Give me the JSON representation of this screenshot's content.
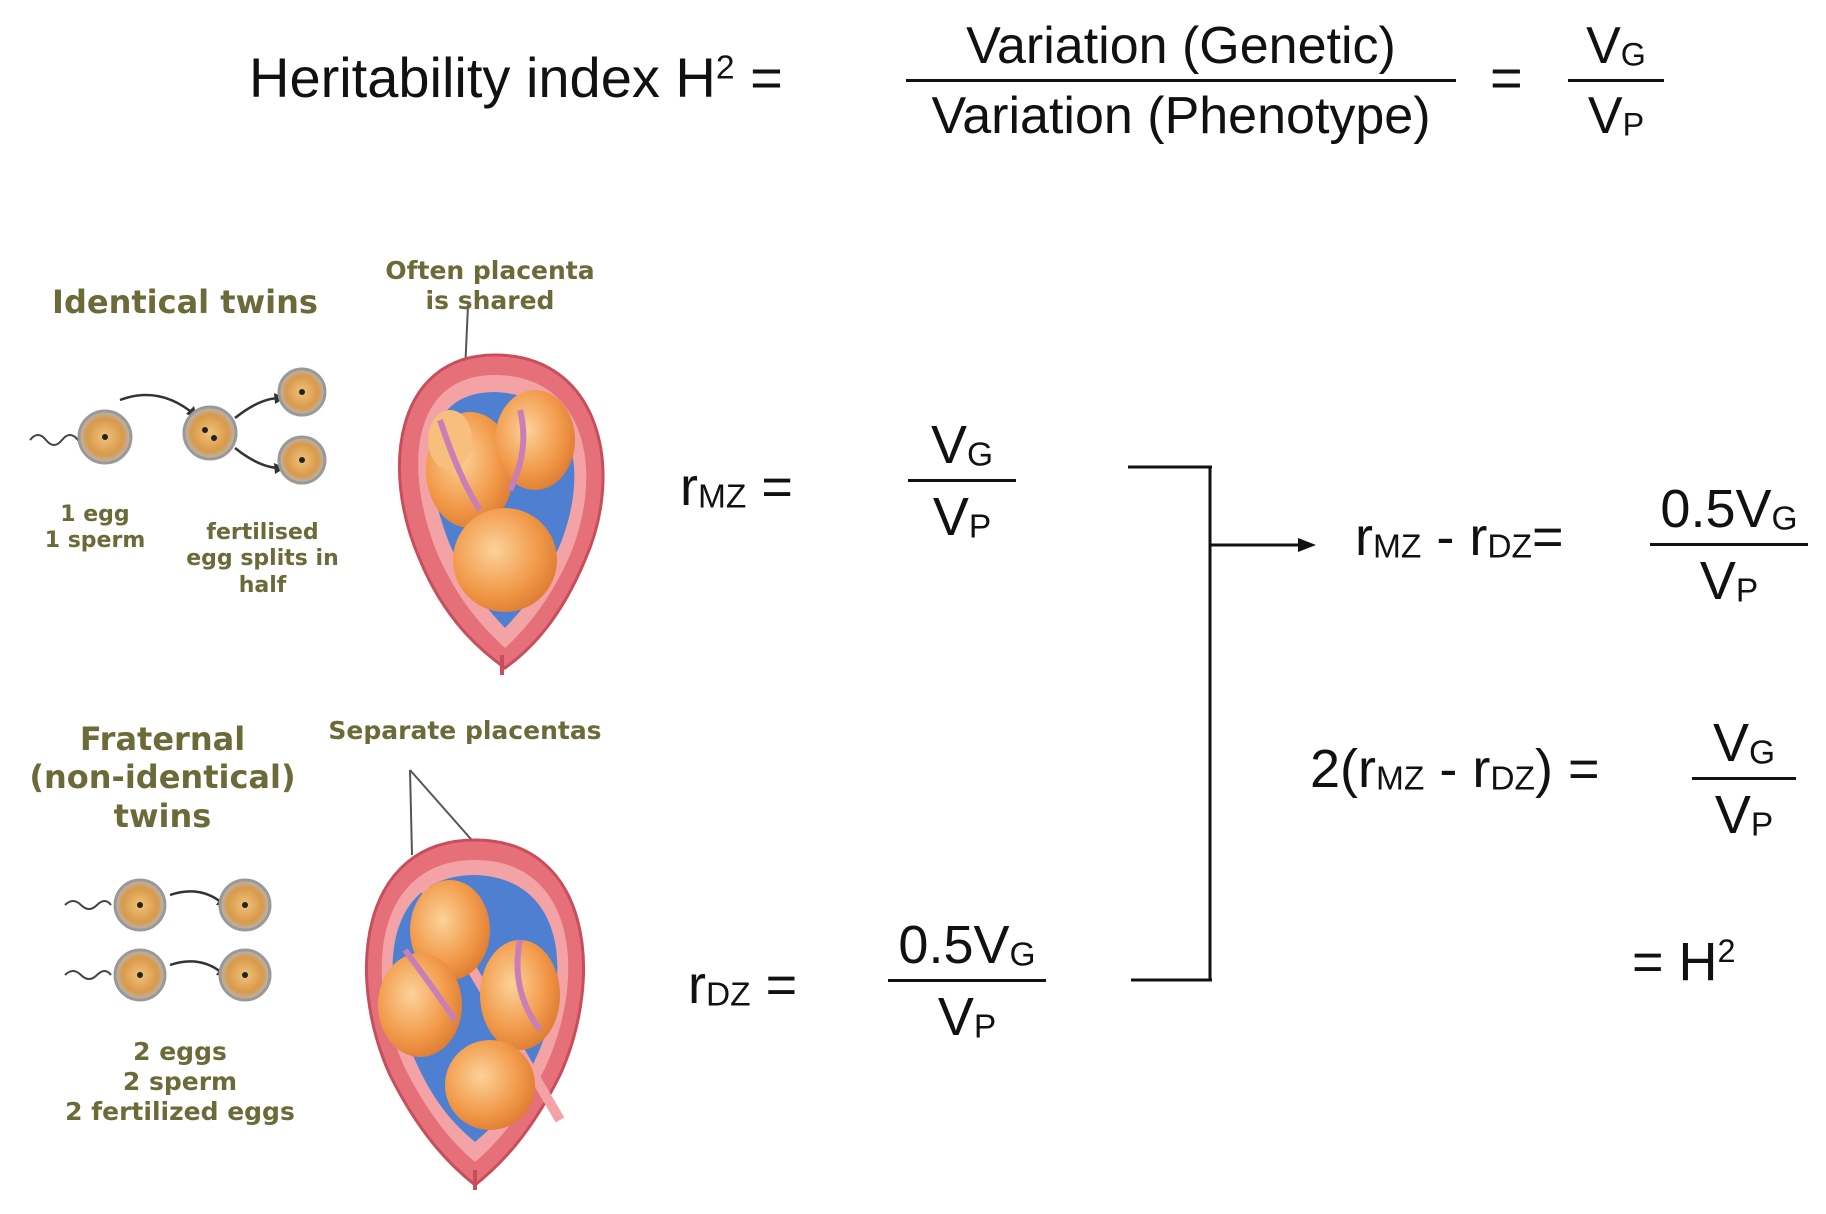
{
  "heading": {
    "label": "Heritability index",
    "h_symbol": "H",
    "h_exp": "2",
    "equals": "=",
    "numerator": "Variation (Genetic)",
    "denominator": "Variation (Phenotype)",
    "equals2": "=",
    "vg": "V",
    "vg_sub": "G",
    "vp": "V",
    "vp_sub": "P"
  },
  "illustration": {
    "identical": {
      "title": "Identical twins",
      "placenta_note_line1": "Often placenta",
      "placenta_note_line2": "is shared",
      "egg_line1": "1 egg",
      "egg_line2": "1 sperm",
      "split_line1": "fertilised",
      "split_line2": "egg splits in",
      "split_line3": "half"
    },
    "fraternal": {
      "title_line1": "Fraternal",
      "title_line2": "(non-identical)",
      "title_line3": "twins",
      "placenta_note": "Separate placentas",
      "egg_line1": "2 eggs",
      "egg_line2": "2 sperm",
      "egg_line3": "2 fertilized eggs"
    }
  },
  "equations": {
    "r": "r",
    "mz": "MZ",
    "dz": "DZ",
    "eq": "=",
    "vg": "V",
    "g": "G",
    "vp": "V",
    "p": "P",
    "half": "0.5V",
    "minus": "-",
    "two_open": "2(",
    "close": ")",
    "final_eq": "= H",
    "final_exp": "2"
  },
  "colors": {
    "text": "#111111",
    "label": "#6b6a38",
    "uterus": "#e6707a",
    "uterus_inner": "#f3a3a6",
    "amnion": "#4f7fd0",
    "fetus": "#f29a4a",
    "fetus_light": "#f7be7e"
  }
}
